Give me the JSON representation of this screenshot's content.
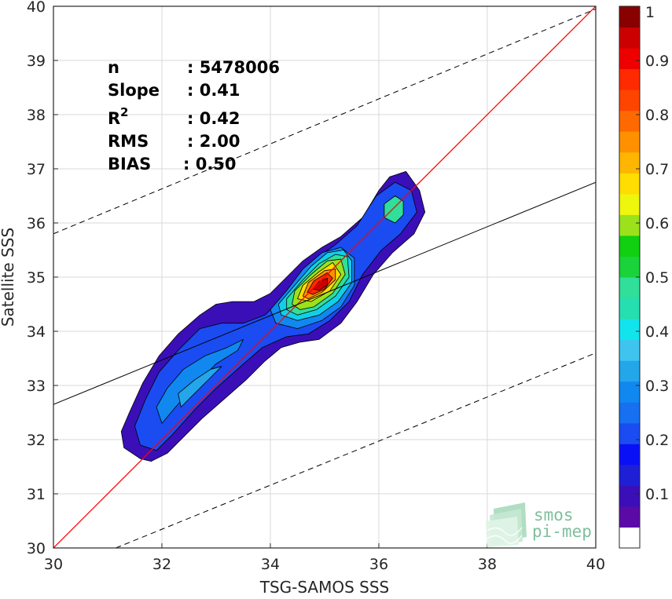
{
  "chart_data": {
    "type": "heatmap",
    "subtype": "filled-contour density scatter",
    "xlabel": "TSG-SAMOS SSS",
    "ylabel": "Satellite SSS",
    "xlim": [
      30,
      40
    ],
    "ylim": [
      30,
      40
    ],
    "xticks": [
      "30",
      "32",
      "34",
      "36",
      "38",
      "40"
    ],
    "yticks": [
      "30",
      "31",
      "32",
      "33",
      "34",
      "35",
      "36",
      "37",
      "38",
      "39",
      "40"
    ],
    "grid": true,
    "stats": [
      {
        "key": "n",
        "value": ": 5478006"
      },
      {
        "key": "Slope",
        "value": ": 0.41"
      },
      {
        "key": "R",
        "sup": "2",
        "value": ": 0.42"
      },
      {
        "key": "RMS",
        "value": ": 2.00"
      },
      {
        "key": "BIAS",
        "value": ": 0.50"
      }
    ],
    "lines": [
      {
        "name": "identity",
        "color": "#ff0000",
        "style": "solid",
        "points": [
          [
            30,
            30
          ],
          [
            40,
            40
          ]
        ]
      },
      {
        "name": "regression",
        "color": "#000000",
        "style": "solid",
        "points": [
          [
            30,
            32.65
          ],
          [
            40,
            36.75
          ]
        ]
      },
      {
        "name": "upper-bound",
        "color": "#000000",
        "style": "dashed",
        "points": [
          [
            30,
            35.8
          ],
          [
            40,
            39.95
          ]
        ]
      },
      {
        "name": "lower-bound",
        "color": "#000000",
        "style": "dashed",
        "points": [
          [
            31.15,
            30
          ],
          [
            40,
            33.6
          ]
        ]
      }
    ],
    "density_levels": [
      {
        "level": 0.05,
        "color": "#3a0fb8",
        "points": [
          [
            31.8,
            31.6
          ],
          [
            31.6,
            31.65
          ],
          [
            31.3,
            31.85
          ],
          [
            31.25,
            32.15
          ],
          [
            31.4,
            32.5
          ],
          [
            31.65,
            33.05
          ],
          [
            31.95,
            33.55
          ],
          [
            32.3,
            33.95
          ],
          [
            32.7,
            34.3
          ],
          [
            33.0,
            34.5
          ],
          [
            33.3,
            34.55
          ],
          [
            33.7,
            34.55
          ],
          [
            34.0,
            34.7
          ],
          [
            34.3,
            35.0
          ],
          [
            34.6,
            35.3
          ],
          [
            34.95,
            35.55
          ],
          [
            35.3,
            35.75
          ],
          [
            35.7,
            36.1
          ],
          [
            36.0,
            36.6
          ],
          [
            36.2,
            36.85
          ],
          [
            36.5,
            36.95
          ],
          [
            36.75,
            36.6
          ],
          [
            36.85,
            36.2
          ],
          [
            36.65,
            35.8
          ],
          [
            36.25,
            35.45
          ],
          [
            35.9,
            35.05
          ],
          [
            35.6,
            34.55
          ],
          [
            35.3,
            34.15
          ],
          [
            34.9,
            33.85
          ],
          [
            34.55,
            33.8
          ],
          [
            34.2,
            33.7
          ],
          [
            33.9,
            33.45
          ],
          [
            33.55,
            33.1
          ],
          [
            33.15,
            32.75
          ],
          [
            32.75,
            32.4
          ],
          [
            32.4,
            32.05
          ],
          [
            32.1,
            31.75
          ]
        ]
      },
      {
        "level": 0.15,
        "color": "#1a4cf2",
        "points": [
          [
            31.9,
            31.8
          ],
          [
            31.6,
            31.9
          ],
          [
            31.5,
            32.25
          ],
          [
            31.7,
            32.75
          ],
          [
            31.95,
            33.25
          ],
          [
            32.3,
            33.65
          ],
          [
            32.7,
            34.05
          ],
          [
            33.1,
            34.15
          ],
          [
            33.5,
            34.15
          ],
          [
            33.9,
            34.3
          ],
          [
            34.2,
            34.6
          ],
          [
            34.5,
            35.0
          ],
          [
            34.85,
            35.35
          ],
          [
            35.2,
            35.6
          ],
          [
            35.6,
            35.95
          ],
          [
            35.95,
            36.5
          ],
          [
            36.3,
            36.75
          ],
          [
            36.6,
            36.6
          ],
          [
            36.7,
            36.2
          ],
          [
            36.4,
            35.8
          ],
          [
            36.05,
            35.5
          ],
          [
            35.7,
            35.05
          ],
          [
            35.45,
            34.55
          ],
          [
            35.1,
            34.2
          ],
          [
            34.7,
            33.95
          ],
          [
            34.3,
            33.9
          ],
          [
            33.85,
            33.7
          ],
          [
            33.45,
            33.35
          ],
          [
            33.0,
            32.95
          ],
          [
            32.6,
            32.55
          ],
          [
            32.2,
            32.1
          ]
        ]
      },
      {
        "level": 0.25,
        "color": "#1188f0",
        "points": [
          [
            32.0,
            32.3
          ],
          [
            31.9,
            32.6
          ],
          [
            32.1,
            32.95
          ],
          [
            32.4,
            33.3
          ],
          [
            32.8,
            33.55
          ],
          [
            33.2,
            33.7
          ],
          [
            33.5,
            33.85
          ],
          [
            33.4,
            33.65
          ],
          [
            33.0,
            33.4
          ],
          [
            32.6,
            33.0
          ],
          [
            32.25,
            32.6
          ]
        ]
      },
      {
        "level": 0.3,
        "color": "#23a6ea",
        "points": [
          [
            32.35,
            32.6
          ],
          [
            32.3,
            32.85
          ],
          [
            32.6,
            33.1
          ],
          [
            32.9,
            33.3
          ],
          [
            33.1,
            33.35
          ],
          [
            32.85,
            33.1
          ],
          [
            32.55,
            32.8
          ]
        ]
      },
      {
        "level": 0.25,
        "color": "#1188f0",
        "points": [
          [
            34.1,
            34.15
          ],
          [
            34.0,
            34.4
          ],
          [
            34.3,
            34.75
          ],
          [
            34.6,
            35.15
          ],
          [
            34.95,
            35.45
          ],
          [
            35.3,
            35.55
          ],
          [
            35.55,
            35.35
          ],
          [
            35.55,
            34.85
          ],
          [
            35.3,
            34.45
          ],
          [
            34.95,
            34.2
          ],
          [
            34.5,
            34.05
          ]
        ]
      },
      {
        "level": 0.35,
        "color": "#12cfe8",
        "points": [
          [
            34.2,
            34.3
          ],
          [
            34.15,
            34.5
          ],
          [
            34.45,
            34.85
          ],
          [
            34.75,
            35.2
          ],
          [
            35.05,
            35.45
          ],
          [
            35.35,
            35.5
          ],
          [
            35.5,
            35.3
          ],
          [
            35.5,
            34.9
          ],
          [
            35.25,
            34.55
          ],
          [
            34.9,
            34.3
          ],
          [
            34.5,
            34.2
          ]
        ]
      },
      {
        "level": 0.45,
        "color": "#2fdf9a",
        "points": [
          [
            34.3,
            34.4
          ],
          [
            34.3,
            34.6
          ],
          [
            34.6,
            34.95
          ],
          [
            34.9,
            35.25
          ],
          [
            35.2,
            35.42
          ],
          [
            35.42,
            35.38
          ],
          [
            35.45,
            35.0
          ],
          [
            35.2,
            34.65
          ],
          [
            34.85,
            34.4
          ],
          [
            34.5,
            34.3
          ]
        ]
      },
      {
        "level": 0.55,
        "color": "#9be21c",
        "points": [
          [
            34.4,
            34.5
          ],
          [
            34.45,
            34.75
          ],
          [
            34.75,
            35.05
          ],
          [
            35.05,
            35.3
          ],
          [
            35.3,
            35.33
          ],
          [
            35.38,
            35.05
          ],
          [
            35.15,
            34.7
          ],
          [
            34.8,
            34.45
          ],
          [
            34.55,
            34.4
          ]
        ]
      },
      {
        "level": 0.65,
        "color": "#ffdd00",
        "points": [
          [
            34.5,
            34.6
          ],
          [
            34.6,
            34.85
          ],
          [
            34.9,
            35.1
          ],
          [
            35.15,
            35.27
          ],
          [
            35.3,
            35.05
          ],
          [
            35.1,
            34.75
          ],
          [
            34.75,
            34.55
          ]
        ]
      },
      {
        "level": 0.75,
        "color": "#ff9100",
        "points": [
          [
            34.6,
            34.65
          ],
          [
            34.7,
            34.9
          ],
          [
            35.0,
            35.12
          ],
          [
            35.2,
            35.15
          ],
          [
            35.2,
            34.95
          ],
          [
            34.95,
            34.72
          ],
          [
            34.7,
            34.6
          ]
        ]
      },
      {
        "level": 0.85,
        "color": "#ff2a00",
        "points": [
          [
            34.68,
            34.72
          ],
          [
            34.8,
            34.93
          ],
          [
            35.05,
            35.08
          ],
          [
            35.15,
            34.98
          ],
          [
            35.0,
            34.78
          ],
          [
            34.78,
            34.68
          ]
        ]
      },
      {
        "level": 0.95,
        "color": "#cc0000",
        "points": [
          [
            34.78,
            34.78
          ],
          [
            34.9,
            34.92
          ],
          [
            35.05,
            34.98
          ],
          [
            35.05,
            34.85
          ],
          [
            34.9,
            34.76
          ]
        ]
      },
      {
        "level": 0.45,
        "color": "#2fdf9a",
        "points": [
          [
            36.1,
            36.1
          ],
          [
            36.1,
            36.35
          ],
          [
            36.3,
            36.5
          ],
          [
            36.45,
            36.4
          ],
          [
            36.45,
            36.15
          ],
          [
            36.3,
            36.0
          ]
        ]
      }
    ],
    "colorbar": {
      "min": 0,
      "max": 1,
      "ticks": [
        "0.1",
        "0.2",
        "0.3",
        "0.4",
        "0.5",
        "0.6",
        "0.7",
        "0.8",
        "0.9",
        "1"
      ],
      "colors": [
        "#ffffff",
        "#5b0aa8",
        "#3a0fb8",
        "#1f1fd6",
        "#0a10f5",
        "#1a4cf2",
        "#1670f0",
        "#1188f0",
        "#23a6ea",
        "#3fc4f0",
        "#12e4ee",
        "#26dfb0",
        "#2fdf9a",
        "#1ad23a",
        "#11cf11",
        "#9be21c",
        "#eef60e",
        "#ffdd00",
        "#ffb600",
        "#ff9100",
        "#ff6a00",
        "#ff4400",
        "#ff2a00",
        "#ee0000",
        "#cc0000",
        "#880000"
      ]
    },
    "logo": {
      "line1": "smos",
      "line2": "pi-mep"
    }
  }
}
